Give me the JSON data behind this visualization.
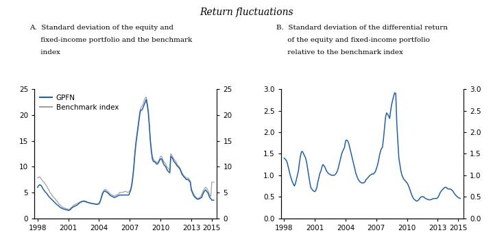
{
  "title": "Return fluctuations",
  "panel_A_title_line1": "A.  Standard deviation of the equity and",
  "panel_A_title_line2": "     fixed-income portfolio and the benchmark",
  "panel_A_title_line3": "     index",
  "panel_B_title_line1": "B.  Standard deviation of the differential return",
  "panel_B_title_line2": "     of the equity and fixed-income portfolio",
  "panel_B_title_line3": "     relative to the benchmark index",
  "legend_gpfn": "GPFN",
  "legend_benchmark": "Benchmark index",
  "color_gpfn": "#1f5fa6",
  "color_benchmark": "#a0a0a0",
  "ylim_A": [
    0,
    25
  ],
  "yticks_A": [
    0,
    5,
    10,
    15,
    20,
    25
  ],
  "ylim_B": [
    0.0,
    3.0
  ],
  "yticks_B": [
    0.0,
    0.5,
    1.0,
    1.5,
    2.0,
    2.5,
    3.0
  ],
  "xlim": [
    1997.7,
    2015.5
  ],
  "xticks": [
    1998,
    2001,
    2004,
    2007,
    2010,
    2013,
    2015
  ],
  "gpfn_x": [
    1998.0,
    1998.1,
    1998.2,
    1998.3,
    1998.4,
    1998.5,
    1998.6,
    1998.7,
    1998.8,
    1998.9,
    1999.0,
    1999.1,
    1999.2,
    1999.3,
    1999.4,
    1999.5,
    1999.6,
    1999.7,
    1999.8,
    1999.9,
    2000.0,
    2000.1,
    2000.2,
    2000.3,
    2000.4,
    2000.5,
    2000.6,
    2000.7,
    2000.8,
    2000.9,
    2001.0,
    2001.1,
    2001.2,
    2001.3,
    2001.4,
    2001.5,
    2001.6,
    2001.7,
    2001.8,
    2001.9,
    2002.0,
    2002.1,
    2002.2,
    2002.3,
    2002.4,
    2002.5,
    2002.6,
    2002.7,
    2002.8,
    2002.9,
    2003.0,
    2003.1,
    2003.2,
    2003.3,
    2003.4,
    2003.5,
    2003.6,
    2003.7,
    2003.8,
    2003.9,
    2004.0,
    2004.1,
    2004.2,
    2004.3,
    2004.4,
    2004.5,
    2004.6,
    2004.7,
    2004.8,
    2004.9,
    2005.0,
    2005.1,
    2005.2,
    2005.3,
    2005.4,
    2005.5,
    2005.6,
    2005.7,
    2005.8,
    2005.9,
    2006.0,
    2006.1,
    2006.2,
    2006.3,
    2006.4,
    2006.5,
    2006.6,
    2006.7,
    2006.8,
    2006.9,
    2007.0,
    2007.1,
    2007.2,
    2007.3,
    2007.4,
    2007.5,
    2007.6,
    2007.7,
    2007.8,
    2007.9,
    2008.0,
    2008.1,
    2008.2,
    2008.3,
    2008.4,
    2008.5,
    2008.6,
    2008.7,
    2008.8,
    2008.9,
    2009.0,
    2009.1,
    2009.2,
    2009.3,
    2009.4,
    2009.5,
    2009.6,
    2009.7,
    2009.8,
    2009.9,
    2010.0,
    2010.1,
    2010.2,
    2010.3,
    2010.4,
    2010.5,
    2010.6,
    2010.7,
    2010.8,
    2010.9,
    2011.0,
    2011.1,
    2011.2,
    2011.3,
    2011.4,
    2011.5,
    2011.6,
    2011.7,
    2011.8,
    2011.9,
    2012.0,
    2012.1,
    2012.2,
    2012.3,
    2012.4,
    2012.5,
    2012.6,
    2012.7,
    2012.8,
    2012.9,
    2013.0,
    2013.1,
    2013.2,
    2013.3,
    2013.4,
    2013.5,
    2013.6,
    2013.7,
    2013.8,
    2013.9,
    2014.0,
    2014.1,
    2014.2,
    2014.3,
    2014.4,
    2014.5,
    2014.6,
    2014.7,
    2014.8,
    2014.9,
    2015.0,
    2015.1,
    2015.2
  ],
  "gpfn_y": [
    6.0,
    6.3,
    6.5,
    6.4,
    6.2,
    5.8,
    5.5,
    5.2,
    5.0,
    4.8,
    4.5,
    4.2,
    4.0,
    3.8,
    3.6,
    3.4,
    3.2,
    3.0,
    2.8,
    2.6,
    2.5,
    2.3,
    2.1,
    2.0,
    1.9,
    1.8,
    1.75,
    1.7,
    1.65,
    1.6,
    1.5,
    1.55,
    1.7,
    1.9,
    2.1,
    2.2,
    2.3,
    2.4,
    2.5,
    2.6,
    2.8,
    3.0,
    3.1,
    3.2,
    3.25,
    3.3,
    3.25,
    3.2,
    3.1,
    3.05,
    3.0,
    2.95,
    2.9,
    2.85,
    2.8,
    2.8,
    2.75,
    2.7,
    2.7,
    2.75,
    2.8,
    3.2,
    3.8,
    4.5,
    5.0,
    5.2,
    5.3,
    5.1,
    5.0,
    4.8,
    4.6,
    4.4,
    4.3,
    4.2,
    4.1,
    4.0,
    4.1,
    4.2,
    4.3,
    4.4,
    4.5,
    4.5,
    4.5,
    4.5,
    4.5,
    4.5,
    4.5,
    4.5,
    4.5,
    4.5,
    5.0,
    5.5,
    6.5,
    8.0,
    10.0,
    12.5,
    14.5,
    16.0,
    17.5,
    19.0,
    20.5,
    21.0,
    21.0,
    21.5,
    22.0,
    22.5,
    23.0,
    22.0,
    20.5,
    18.0,
    15.0,
    13.0,
    11.5,
    11.0,
    11.0,
    10.8,
    10.5,
    10.5,
    10.8,
    11.2,
    11.5,
    11.5,
    11.0,
    10.5,
    10.2,
    10.0,
    9.5,
    9.2,
    9.0,
    8.8,
    12.0,
    11.8,
    11.5,
    11.0,
    10.8,
    10.5,
    10.2,
    10.0,
    9.8,
    9.5,
    9.0,
    8.5,
    8.2,
    8.0,
    7.8,
    7.5,
    7.5,
    7.5,
    7.2,
    7.0,
    5.5,
    5.0,
    4.5,
    4.2,
    4.0,
    3.8,
    3.7,
    3.7,
    3.8,
    3.9,
    4.0,
    4.5,
    5.0,
    5.3,
    5.5,
    5.2,
    5.0,
    4.5,
    4.0,
    3.8,
    3.5,
    3.5,
    3.5
  ],
  "benchmark_y": [
    7.8,
    8.0,
    8.0,
    7.8,
    7.5,
    7.2,
    7.0,
    6.8,
    6.5,
    6.2,
    5.8,
    5.5,
    5.0,
    4.8,
    4.5,
    4.2,
    4.0,
    3.8,
    3.5,
    3.3,
    3.0,
    2.8,
    2.6,
    2.4,
    2.2,
    2.1,
    2.0,
    1.9,
    1.85,
    1.8,
    1.7,
    1.75,
    1.9,
    2.1,
    2.3,
    2.5,
    2.6,
    2.7,
    2.8,
    2.9,
    3.0,
    3.1,
    3.2,
    3.3,
    3.35,
    3.4,
    3.35,
    3.3,
    3.2,
    3.1,
    3.05,
    3.0,
    2.95,
    2.9,
    2.85,
    2.85,
    2.8,
    2.75,
    2.75,
    2.8,
    2.9,
    3.3,
    4.0,
    4.8,
    5.2,
    5.5,
    5.6,
    5.5,
    5.3,
    5.1,
    4.9,
    4.7,
    4.6,
    4.5,
    4.4,
    4.3,
    4.4,
    4.5,
    4.6,
    4.7,
    5.0,
    5.0,
    5.0,
    5.0,
    5.1,
    5.2,
    5.2,
    5.1,
    5.0,
    5.1,
    5.3,
    5.8,
    7.0,
    8.5,
    10.5,
    13.0,
    15.0,
    16.5,
    18.0,
    19.5,
    21.0,
    21.5,
    21.8,
    22.2,
    22.8,
    23.3,
    23.5,
    22.5,
    21.0,
    18.5,
    15.5,
    13.5,
    12.0,
    11.5,
    11.2,
    11.0,
    10.8,
    10.8,
    11.0,
    11.5,
    12.0,
    12.0,
    11.5,
    11.0,
    10.8,
    10.5,
    10.0,
    9.8,
    9.5,
    9.3,
    12.5,
    12.2,
    11.8,
    11.5,
    11.2,
    11.0,
    10.5,
    10.2,
    10.0,
    9.7,
    9.2,
    8.8,
    8.5,
    8.2,
    8.0,
    7.8,
    7.8,
    7.8,
    7.5,
    7.2,
    5.8,
    5.3,
    4.8,
    4.5,
    4.2,
    4.0,
    3.9,
    3.8,
    4.0,
    4.2,
    4.5,
    5.0,
    5.5,
    5.8,
    6.0,
    5.8,
    5.5,
    5.0,
    4.5,
    4.2,
    7.0,
    7.0,
    7.0
  ],
  "panel_B_x": [
    1998.0,
    1998.1,
    1998.2,
    1998.3,
    1998.4,
    1998.5,
    1998.6,
    1998.7,
    1998.8,
    1998.9,
    1999.0,
    1999.1,
    1999.2,
    1999.3,
    1999.4,
    1999.5,
    1999.6,
    1999.7,
    1999.8,
    1999.9,
    2000.0,
    2000.1,
    2000.2,
    2000.3,
    2000.4,
    2000.5,
    2000.6,
    2000.7,
    2000.8,
    2000.9,
    2001.0,
    2001.1,
    2001.2,
    2001.3,
    2001.4,
    2001.5,
    2001.6,
    2001.7,
    2001.8,
    2001.9,
    2002.0,
    2002.1,
    2002.2,
    2002.3,
    2002.4,
    2002.5,
    2002.6,
    2002.7,
    2002.8,
    2002.9,
    2003.0,
    2003.1,
    2003.2,
    2003.3,
    2003.4,
    2003.5,
    2003.6,
    2003.7,
    2003.8,
    2003.9,
    2004.0,
    2004.1,
    2004.2,
    2004.3,
    2004.4,
    2004.5,
    2004.6,
    2004.7,
    2004.8,
    2004.9,
    2005.0,
    2005.1,
    2005.2,
    2005.3,
    2005.4,
    2005.5,
    2005.6,
    2005.7,
    2005.8,
    2005.9,
    2006.0,
    2006.1,
    2006.2,
    2006.3,
    2006.4,
    2006.5,
    2006.6,
    2006.7,
    2006.8,
    2006.9,
    2007.0,
    2007.1,
    2007.2,
    2007.3,
    2007.4,
    2007.5,
    2007.6,
    2007.7,
    2007.8,
    2007.9,
    2008.0,
    2008.1,
    2008.2,
    2008.3,
    2008.4,
    2008.5,
    2008.6,
    2008.7,
    2008.8,
    2008.9,
    2009.0,
    2009.1,
    2009.2,
    2009.3,
    2009.4,
    2009.5,
    2009.6,
    2009.7,
    2009.8,
    2009.9,
    2010.0,
    2010.1,
    2010.2,
    2010.3,
    2010.4,
    2010.5,
    2010.6,
    2010.7,
    2010.8,
    2010.9,
    2011.0,
    2011.1,
    2011.2,
    2011.3,
    2011.4,
    2011.5,
    2011.6,
    2011.7,
    2011.8,
    2011.9,
    2012.0,
    2012.1,
    2012.2,
    2012.3,
    2012.4,
    2012.5,
    2012.6,
    2012.7,
    2012.8,
    2012.9,
    2013.0,
    2013.1,
    2013.2,
    2013.3,
    2013.4,
    2013.5,
    2013.6,
    2013.7,
    2013.8,
    2013.9,
    2014.0,
    2014.1,
    2014.2,
    2014.3,
    2014.4,
    2014.5,
    2014.6,
    2014.7,
    2014.8,
    2014.9,
    2015.0,
    2015.1,
    2015.2
  ],
  "panel_B_y": [
    1.4,
    1.38,
    1.35,
    1.3,
    1.2,
    1.1,
    1.0,
    0.92,
    0.85,
    0.8,
    0.75,
    0.8,
    0.9,
    1.0,
    1.1,
    1.3,
    1.45,
    1.55,
    1.55,
    1.5,
    1.45,
    1.4,
    1.3,
    1.15,
    1.0,
    0.85,
    0.72,
    0.68,
    0.65,
    0.63,
    0.62,
    0.65,
    0.72,
    0.85,
    0.95,
    1.05,
    1.1,
    1.2,
    1.25,
    1.22,
    1.18,
    1.12,
    1.08,
    1.05,
    1.03,
    1.02,
    1.0,
    1.0,
    1.0,
    1.0,
    1.02,
    1.05,
    1.1,
    1.18,
    1.28,
    1.38,
    1.48,
    1.55,
    1.6,
    1.65,
    1.8,
    1.82,
    1.8,
    1.75,
    1.65,
    1.55,
    1.45,
    1.35,
    1.25,
    1.15,
    1.05,
    0.98,
    0.92,
    0.88,
    0.85,
    0.83,
    0.82,
    0.82,
    0.83,
    0.85,
    0.9,
    0.92,
    0.95,
    0.98,
    1.0,
    1.02,
    1.03,
    1.03,
    1.05,
    1.08,
    1.15,
    1.22,
    1.32,
    1.45,
    1.55,
    1.62,
    1.65,
    1.85,
    2.1,
    2.35,
    2.45,
    2.42,
    2.38,
    2.32,
    2.5,
    2.65,
    2.75,
    2.85,
    2.92,
    2.9,
    2.2,
    1.8,
    1.4,
    1.25,
    1.1,
    1.0,
    0.95,
    0.9,
    0.88,
    0.85,
    0.82,
    0.78,
    0.72,
    0.65,
    0.58,
    0.52,
    0.47,
    0.44,
    0.42,
    0.4,
    0.4,
    0.42,
    0.45,
    0.48,
    0.5,
    0.5,
    0.5,
    0.48,
    0.46,
    0.45,
    0.44,
    0.43,
    0.43,
    0.43,
    0.44,
    0.45,
    0.46,
    0.46,
    0.46,
    0.46,
    0.48,
    0.52,
    0.58,
    0.62,
    0.65,
    0.68,
    0.7,
    0.72,
    0.72,
    0.7,
    0.68,
    0.68,
    0.68,
    0.67,
    0.65,
    0.62,
    0.58,
    0.55,
    0.52,
    0.5,
    0.48,
    0.47,
    0.46
  ]
}
